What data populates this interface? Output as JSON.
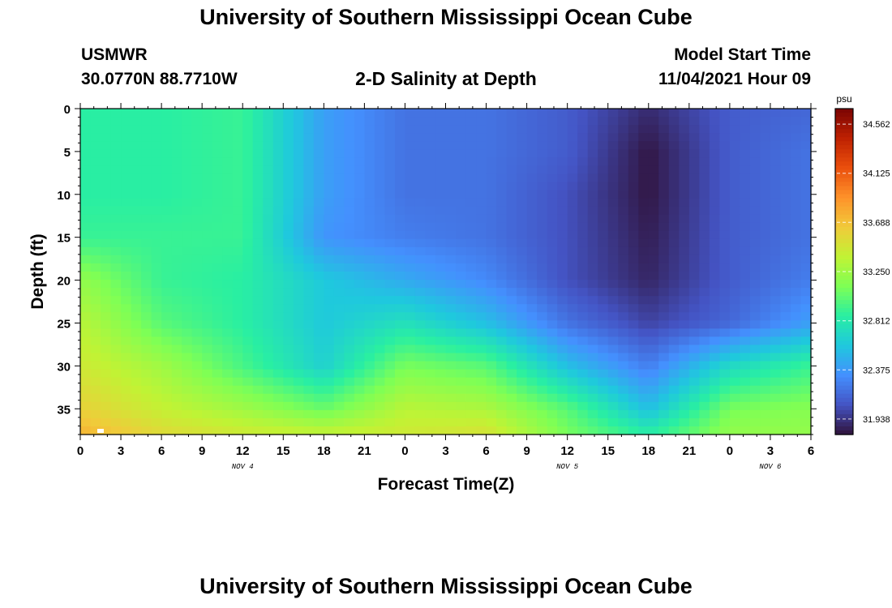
{
  "page": {
    "title_top": "University of Southern Mississippi Ocean Cube",
    "title_bottom": "University of Southern Mississippi Ocean Cube",
    "station": "USMWR",
    "location": "30.0770N  88.7710W",
    "plot_title": "2-D Salinity at Depth",
    "model_start_label": "Model Start Time",
    "model_start_value": "11/04/2021 Hour 09"
  },
  "chart_data": {
    "type": "heatmap",
    "variable": "salinity",
    "xlabel": "Forecast Time(Z)",
    "ylabel": "Depth (ft)",
    "x_tick_labels": [
      "0",
      "3",
      "6",
      "9",
      "12",
      "15",
      "18",
      "21",
      "0",
      "3",
      "6",
      "9",
      "12",
      "15",
      "18",
      "21",
      "0",
      "3",
      "6"
    ],
    "x_date_labels": [
      {
        "label": "NOV 4",
        "tick_index": 4
      },
      {
        "label": "NOV 5",
        "tick_index": 12
      },
      {
        "label": "NOV 6",
        "tick_index": 17
      }
    ],
    "x_range_hours": [
      0,
      54
    ],
    "y_ticks": [
      0,
      5,
      10,
      15,
      20,
      25,
      30,
      35
    ],
    "y_range_ft": [
      0,
      38
    ],
    "colorbar": {
      "unit": "psu",
      "min": 31.8,
      "max": 34.7,
      "labels": [
        "34.562",
        "34.125",
        "33.688",
        "33.250",
        "32.812",
        "32.375",
        "31.938"
      ],
      "label_values": [
        34.562,
        34.125,
        33.688,
        33.25,
        32.812,
        32.375,
        31.938
      ],
      "colormap": [
        "#30123b",
        "#4454c4",
        "#4490fe",
        "#1fc8de",
        "#29efa2",
        "#7eff55",
        "#c1f334",
        "#f1ca3a",
        "#fe922a",
        "#ea4f0d",
        "#be2102",
        "#7a0403"
      ]
    },
    "salinity_grid": {
      "time_hours": [
        0,
        6,
        12,
        18,
        24,
        30,
        36,
        42,
        48,
        54
      ],
      "depth_ft": [
        0,
        5,
        10,
        15,
        20,
        25,
        30,
        35,
        38
      ],
      "values": [
        [
          32.85,
          32.85,
          32.9,
          32.4,
          32.2,
          32.2,
          32.1,
          31.9,
          32.1,
          32.15
        ],
        [
          32.85,
          32.85,
          32.9,
          32.4,
          32.2,
          32.2,
          32.1,
          31.82,
          32.1,
          32.2
        ],
        [
          32.85,
          32.85,
          32.9,
          32.4,
          32.2,
          32.2,
          32.05,
          31.82,
          32.1,
          32.2
        ],
        [
          32.9,
          32.9,
          32.9,
          32.35,
          32.25,
          32.2,
          32.05,
          31.85,
          32.1,
          32.2
        ],
        [
          33.2,
          32.9,
          32.85,
          32.6,
          32.45,
          32.3,
          32.05,
          31.88,
          32.1,
          32.25
        ],
        [
          33.35,
          33.0,
          32.85,
          32.6,
          32.75,
          32.55,
          32.2,
          32.0,
          32.15,
          32.4
        ],
        [
          33.45,
          33.25,
          32.95,
          32.65,
          33.1,
          33.0,
          32.55,
          32.25,
          32.7,
          32.9
        ],
        [
          33.6,
          33.4,
          33.25,
          33.05,
          33.35,
          33.3,
          33.0,
          32.55,
          33.1,
          33.15
        ],
        [
          33.75,
          33.55,
          33.45,
          33.4,
          33.45,
          33.5,
          33.1,
          32.85,
          33.2,
          33.2
        ]
      ]
    }
  }
}
